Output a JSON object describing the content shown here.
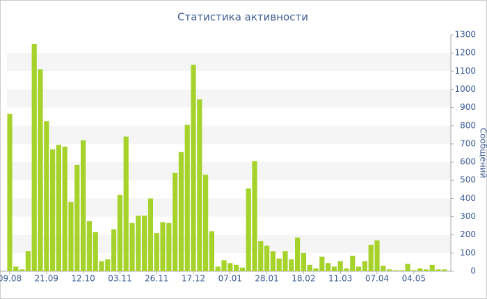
{
  "chart_data": {
    "type": "bar",
    "title": "Статистика активности",
    "y_label": "Сообщений",
    "categories": [
      "09.08",
      null,
      null,
      null,
      null,
      null,
      "21.09",
      null,
      null,
      null,
      null,
      null,
      "12.10",
      null,
      null,
      null,
      null,
      null,
      "03.11",
      null,
      null,
      null,
      null,
      null,
      "26.11",
      null,
      null,
      null,
      null,
      null,
      "17.12",
      null,
      null,
      null,
      null,
      null,
      "07.01",
      null,
      null,
      null,
      null,
      null,
      "28.01",
      null,
      null,
      null,
      null,
      null,
      "18.02",
      null,
      null,
      null,
      null,
      null,
      "11.03",
      null,
      null,
      null,
      null,
      null,
      "07.04",
      null,
      null,
      null,
      null,
      null,
      "04.05",
      null,
      null,
      null,
      null,
      null
    ],
    "values": [
      865,
      25,
      10,
      110,
      1250,
      1110,
      825,
      670,
      695,
      685,
      380,
      585,
      720,
      275,
      215,
      55,
      65,
      230,
      420,
      740,
      265,
      305,
      305,
      400,
      210,
      270,
      265,
      540,
      655,
      805,
      1135,
      945,
      530,
      220,
      25,
      60,
      45,
      35,
      20,
      455,
      605,
      165,
      140,
      110,
      70,
      110,
      65,
      185,
      100,
      35,
      15,
      80,
      45,
      25,
      55,
      15,
      85,
      25,
      55,
      145,
      170,
      30,
      10,
      5,
      5,
      40,
      5,
      15,
      10,
      35,
      10,
      10
    ],
    "color": "#a6d22c",
    "ylim": [
      0,
      1300
    ],
    "yticks": [
      0,
      100,
      200,
      300,
      400,
      500,
      600,
      700,
      800,
      900,
      1000,
      1100,
      1200,
      1300
    ],
    "grid": true,
    "y_axis_side": "right"
  }
}
